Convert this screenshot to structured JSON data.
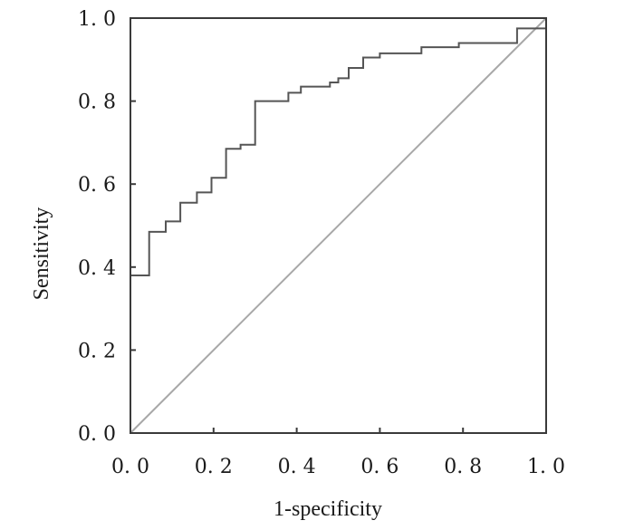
{
  "chart_data": {
    "type": "line",
    "title": "",
    "xlabel": "1-specificity",
    "ylabel": "Sensitivity",
    "xlim": [
      0,
      1
    ],
    "ylim": [
      0,
      1
    ],
    "x_ticks": [
      "0. 0",
      "0. 2",
      "0. 4",
      "0. 6",
      "0. 8",
      "1. 0"
    ],
    "y_ticks": [
      "0. 0",
      "0. 2",
      "0. 4",
      "0. 6",
      "0. 8",
      "1. 0"
    ],
    "grid": false,
    "legend": "none",
    "series": [
      {
        "step": true,
        "color": "#555555",
        "x": [
          0.0,
          0.0,
          0.045,
          0.045,
          0.085,
          0.085,
          0.12,
          0.12,
          0.16,
          0.16,
          0.195,
          0.195,
          0.23,
          0.23,
          0.265,
          0.265,
          0.3,
          0.3,
          0.38,
          0.38,
          0.41,
          0.41,
          0.48,
          0.48,
          0.5,
          0.5,
          0.525,
          0.525,
          0.56,
          0.56,
          0.6,
          0.6,
          0.7,
          0.7,
          0.79,
          0.79,
          0.93,
          0.93,
          1.0
        ],
        "y": [
          0.38,
          0.38,
          0.38,
          0.485,
          0.485,
          0.51,
          0.51,
          0.555,
          0.555,
          0.58,
          0.58,
          0.615,
          0.615,
          0.685,
          0.685,
          0.695,
          0.695,
          0.8,
          0.8,
          0.82,
          0.82,
          0.835,
          0.835,
          0.845,
          0.845,
          0.855,
          0.855,
          0.88,
          0.88,
          0.905,
          0.905,
          0.915,
          0.915,
          0.93,
          0.93,
          0.94,
          0.94,
          0.975,
          0.975
        ]
      },
      {
        "step": false,
        "color": "#a8a8a8",
        "x": [
          0,
          1
        ],
        "y": [
          0,
          1
        ]
      }
    ]
  }
}
